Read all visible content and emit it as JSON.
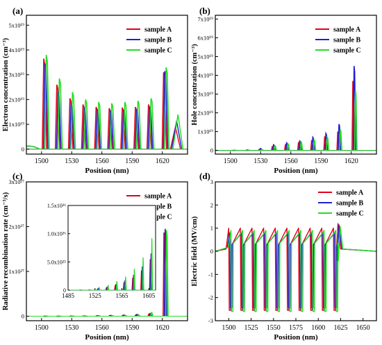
{
  "colors": {
    "sample_a": "#e0001b",
    "sample_b": "#1f1fd6",
    "sample_c": "#22dd22",
    "axis": "#000000"
  },
  "chart_data": [
    {
      "id": "a",
      "panel_label": "(a)",
      "type": "line",
      "xlabel": "Position (nm)",
      "ylabel": "Electron concentration (cm⁻³)",
      "xlim": [
        1485,
        1645
      ],
      "ylim": [
        -2e+18,
        5.4e+19
      ],
      "xticks": [
        1500,
        1530,
        1560,
        1590,
        1620
      ],
      "yticks": [
        0,
        1e+19,
        2e+19,
        3e+19,
        4e+19,
        5e+19
      ],
      "ytick_labels": [
        "0",
        "1x10¹⁹",
        "2x10¹⁹",
        "3x10¹⁹",
        "4x10¹⁹",
        "5x10¹⁹"
      ],
      "legend": [
        "sample A",
        "sample B",
        "sample C"
      ],
      "legend_position": "top-right",
      "well_centers": [
        1503,
        1516,
        1529,
        1542,
        1555,
        1568,
        1581,
        1594,
        1607,
        1622
      ],
      "series": [
        {
          "name": "sample A",
          "offset": 0,
          "peaks": [
            3.65e+19,
            2.6e+19,
            2.05e+19,
            1.8e+19,
            1.7e+19,
            1.65e+19,
            1.68e+19,
            1.7e+19,
            1.8e+19,
            3.1e+19
          ]
        },
        {
          "name": "sample B",
          "offset": 1.2,
          "peaks": [
            3.45e+19,
            2.3e+19,
            1.85e+19,
            1.65e+19,
            1.6e+19,
            1.55e+19,
            1.58e+19,
            1.6e+19,
            1.7e+19,
            3.15e+19
          ]
        },
        {
          "name": "sample C",
          "offset": 2.5,
          "peaks": [
            3.8e+19,
            2.85e+19,
            2.3e+19,
            2e+19,
            1.9e+19,
            1.85e+19,
            1.9e+19,
            1.95e+19,
            2.05e+19,
            3.3e+19
          ]
        }
      ]
    },
    {
      "id": "b",
      "panel_label": "(b)",
      "type": "line",
      "xlabel": "Position (nm)",
      "ylabel": "Hole concentration (cm⁻³)",
      "xlim": [
        1485,
        1645
      ],
      "ylim": [
        -2e+18,
        7.2e+19
      ],
      "xticks": [
        1500,
        1530,
        1560,
        1590,
        1620
      ],
      "yticks": [
        0,
        1e+19,
        2e+19,
        3e+19,
        4e+19,
        5e+19,
        6e+19,
        7e+19
      ],
      "ytick_labels": [
        "0",
        "1x10¹⁹",
        "2x10¹⁹",
        "3x10¹⁹",
        "4x10¹⁹",
        "5x10¹⁹",
        "6x10¹⁹",
        "7x10¹⁹"
      ],
      "legend": [
        "sample A",
        "sample B",
        "sample C"
      ],
      "legend_position": "top-right",
      "well_centers": [
        1503,
        1516,
        1529,
        1542,
        1555,
        1568,
        1581,
        1594,
        1607,
        1622
      ],
      "series": [
        {
          "name": "sample A",
          "offset": 0,
          "peaks": [
            0,
            0,
            5e+17,
            2e+18,
            3e+18,
            4e+18,
            5e+18,
            7e+18,
            1e+19,
            3.7e+19
          ]
        },
        {
          "name": "sample B",
          "offset": 1.2,
          "peaks": [
            0,
            2e+17,
            1e+18,
            3e+18,
            4e+18,
            5e+18,
            7e+18,
            9e+18,
            1.4e+19,
            4.5e+19
          ]
        },
        {
          "name": "sample C",
          "offset": 2.5,
          "peaks": [
            0,
            0,
            5e+17,
            2.5e+18,
            3.5e+18,
            4.5e+18,
            5.5e+18,
            7e+18,
            1.1e+19,
            3.2e+19
          ]
        }
      ]
    },
    {
      "id": "c",
      "panel_label": "(c)",
      "type": "line",
      "xlabel": "Position (nm)",
      "ylabel": "Radiative recombination rate (cm⁻³/s)",
      "xlim": [
        1485,
        1645
      ],
      "ylim": [
        -1e+26,
        3e+27
      ],
      "xticks": [
        1500,
        1530,
        1560,
        1590,
        1620
      ],
      "yticks": [
        0,
        1e+27,
        2e+27,
        3e+27
      ],
      "ytick_labels": [
        "0",
        "1x10²⁷",
        "2x10²⁷",
        "3x10²⁷"
      ],
      "legend": [
        "sample A",
        "sample B",
        "sample C"
      ],
      "legend_position": "top-right",
      "well_centers": [
        1503,
        1516,
        1529,
        1542,
        1555,
        1568,
        1581,
        1594,
        1607,
        1622
      ],
      "series": [
        {
          "name": "sample A",
          "offset": 0,
          "peaks": [
            0,
            0,
            2e+24,
            5e+24,
            1e+25,
            1.5e+25,
            2e+25,
            3e+25,
            5e+25,
            1.87e+27
          ]
        },
        {
          "name": "sample B",
          "offset": 1.2,
          "peaks": [
            0,
            0,
            3e+24,
            6e+24,
            1.2e+25,
            1.8e+25,
            2.5e+25,
            4e+25,
            6e+25,
            1.95e+27
          ]
        },
        {
          "name": "sample C",
          "offset": 2.5,
          "peaks": [
            0,
            0,
            2e+24,
            4e+24,
            8e+24,
            1.2e+25,
            2e+25,
            3e+25,
            8e+25,
            1.92e+27
          ]
        }
      ],
      "inset": {
        "xlim": [
          1485,
          1615
        ],
        "ylim": [
          0,
          1.5e+26
        ],
        "xticks": [
          1485,
          1525,
          1565,
          1605
        ],
        "yticks": [
          0,
          5e+25,
          1e+26,
          1.5e+26
        ],
        "ytick_labels": [
          "0",
          "5.0x10²⁵",
          "1.0x10²⁶",
          "1.5x10²⁶"
        ],
        "well_centers": [
          1503,
          1516,
          1529,
          1542,
          1555,
          1568,
          1581,
          1594,
          1607
        ],
        "series": [
          {
            "name": "sample A",
            "offset": 0,
            "peaks": [
              1e+23,
              3e+23,
              2e+24,
              5e+24,
              9e+24,
              1.4e+25,
              2.2e+25,
              3.5e+25,
              5.5e+25
            ]
          },
          {
            "name": "sample B",
            "offset": 1.2,
            "peaks": [
              1e+23,
              4e+23,
              3e+24,
              6e+24,
              1.1e+25,
              1.7e+25,
              2.7e+25,
              4.2e+25,
              6.5e+25
            ]
          },
          {
            "name": "sample C",
            "offset": 2.5,
            "peaks": [
              1e+23,
              5e+23,
              4e+24,
              9e+24,
              1.6e+25,
              2.4e+25,
              3.8e+25,
              5.8e+25,
              9.2e+25
            ]
          }
        ]
      }
    },
    {
      "id": "d",
      "panel_label": "(d)",
      "type": "line",
      "xlabel": "Position (nm)",
      "ylabel": "Electric field (MV/cm)",
      "xlim": [
        1485,
        1665
      ],
      "ylim": [
        -3,
        3
      ],
      "xticks": [
        1500,
        1525,
        1550,
        1575,
        1600,
        1625,
        1650
      ],
      "yticks": [
        -3,
        -2,
        -1,
        0,
        1,
        2,
        3
      ],
      "ytick_labels": [
        "-3",
        "-2",
        "-1",
        "0",
        "1",
        "2",
        "3"
      ],
      "legend": [
        "sample A",
        "sample B",
        "sample C"
      ],
      "legend_position": "top-right",
      "well_centers": [
        1500,
        1513,
        1526,
        1539,
        1552,
        1565,
        1578,
        1591,
        1604,
        1617
      ],
      "series": [
        {
          "name": "sample A",
          "offset": 0,
          "high": 1.0,
          "low": -2.55,
          "base": 0.2
        },
        {
          "name": "sample B",
          "offset": 1.2,
          "high": 0.8,
          "low": -2.45,
          "base": 0.3
        },
        {
          "name": "sample C",
          "offset": 2.5,
          "high": 0.9,
          "low": -2.6,
          "base": 0.35
        }
      ]
    }
  ]
}
